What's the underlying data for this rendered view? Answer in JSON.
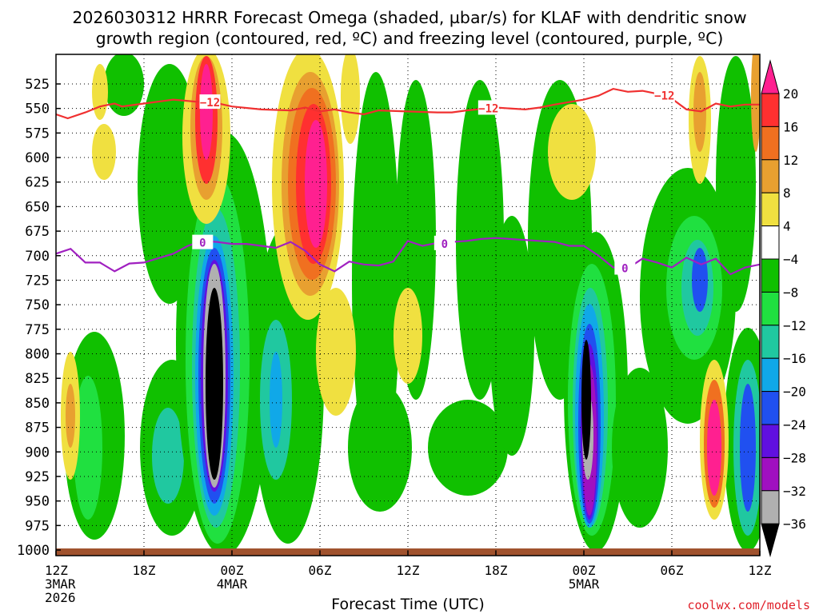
{
  "chart_data": {
    "type": "heatmap",
    "title_line1": "2026030312 HRRR Forecast Omega (shaded, µbar/s) for KLAF with dendritic snow",
    "title_line2": "growth region (contoured, red, ºC) and freezing level (contoured, purple, ºC)",
    "xlabel": "Forecast Time (UTC)",
    "credit": "coolwx.com/models",
    "x_ticks": [
      {
        "hour": 0,
        "label": "12Z",
        "date": "3MAR",
        "year": "2026"
      },
      {
        "hour": 6,
        "label": "18Z"
      },
      {
        "hour": 12,
        "label": "00Z",
        "date": "4MAR"
      },
      {
        "hour": 18,
        "label": "06Z"
      },
      {
        "hour": 24,
        "label": "12Z"
      },
      {
        "hour": 30,
        "label": "18Z"
      },
      {
        "hour": 36,
        "label": "00Z",
        "date": "5MAR"
      },
      {
        "hour": 42,
        "label": "06Z"
      },
      {
        "hour": 48,
        "label": "12Z"
      }
    ],
    "y_ticks": [
      525,
      550,
      575,
      600,
      625,
      650,
      675,
      700,
      725,
      750,
      775,
      800,
      825,
      850,
      875,
      900,
      925,
      950,
      975,
      1000
    ],
    "xlim": [
      0,
      48
    ],
    "ylim_hpa": [
      500,
      1000
    ],
    "grid": true,
    "colorbar": {
      "labels": [
        "20",
        "16",
        "12",
        "8",
        "4",
        "−4",
        "−8",
        "−12",
        "−16",
        "−20",
        "−24",
        "−28",
        "−32",
        "−36"
      ],
      "colors": [
        "#ff2090",
        "#ff3030",
        "#f07020",
        "#e8a030",
        "#f0e040",
        "#ffffff",
        "#10c000",
        "#20e040",
        "#20c8a0",
        "#10a8e8",
        "#2050f0",
        "#6010e0",
        "#a010c0",
        "#b0b0b0",
        "#000000"
      ]
    },
    "series": [
      {
        "name": "dendritic -12C isotherm",
        "color": "#f03030",
        "label": "−12",
        "points": [
          [
            0,
            556
          ],
          [
            0.8,
            560
          ],
          [
            2,
            554
          ],
          [
            3,
            548
          ],
          [
            4,
            545
          ],
          [
            4.5,
            548
          ],
          [
            6,
            545
          ],
          [
            8,
            541
          ],
          [
            9.5,
            543
          ],
          [
            10.5,
            543
          ],
          [
            12,
            548
          ],
          [
            14,
            551
          ],
          [
            16,
            552
          ],
          [
            17,
            549
          ],
          [
            18,
            553
          ],
          [
            19,
            551
          ],
          [
            20,
            554
          ],
          [
            21,
            556
          ],
          [
            22,
            552
          ],
          [
            24,
            553
          ],
          [
            26,
            554
          ],
          [
            27,
            554
          ],
          [
            28,
            552
          ],
          [
            30,
            549
          ],
          [
            32,
            551
          ],
          [
            33,
            549
          ],
          [
            34,
            546
          ],
          [
            36,
            541
          ],
          [
            37,
            537
          ],
          [
            38,
            530
          ],
          [
            39,
            533
          ],
          [
            40,
            532
          ],
          [
            41,
            535
          ],
          [
            42,
            540
          ],
          [
            43,
            551
          ],
          [
            44,
            553
          ],
          [
            45,
            545
          ],
          [
            46,
            548
          ],
          [
            47,
            546
          ],
          [
            48,
            546
          ]
        ]
      },
      {
        "name": "freezing level 0C",
        "color": "#a020c0",
        "label": "0",
        "points": [
          [
            0,
            698
          ],
          [
            1,
            693
          ],
          [
            2,
            707
          ],
          [
            3,
            707
          ],
          [
            4,
            716
          ],
          [
            5,
            708
          ],
          [
            6,
            707
          ],
          [
            8,
            698
          ],
          [
            9,
            690
          ],
          [
            10,
            685
          ],
          [
            11,
            686
          ],
          [
            12,
            688
          ],
          [
            13,
            688
          ],
          [
            14,
            690
          ],
          [
            15,
            692
          ],
          [
            16,
            686
          ],
          [
            17,
            695
          ],
          [
            18,
            709
          ],
          [
            19,
            716
          ],
          [
            20,
            706
          ],
          [
            21,
            709
          ],
          [
            22,
            710
          ],
          [
            23,
            706
          ],
          [
            24,
            685
          ],
          [
            25,
            690
          ],
          [
            26,
            687
          ],
          [
            28,
            685
          ],
          [
            29,
            683
          ],
          [
            30,
            682
          ],
          [
            32,
            684
          ],
          [
            34,
            686
          ],
          [
            35,
            690
          ],
          [
            36,
            690
          ],
          [
            37,
            700
          ],
          [
            38,
            712
          ],
          [
            39,
            713
          ],
          [
            40,
            703
          ],
          [
            41,
            707
          ],
          [
            42,
            712
          ],
          [
            43,
            702
          ],
          [
            44,
            709
          ],
          [
            45,
            703
          ],
          [
            46,
            719
          ],
          [
            47,
            712
          ],
          [
            48,
            709
          ]
        ]
      }
    ]
  }
}
